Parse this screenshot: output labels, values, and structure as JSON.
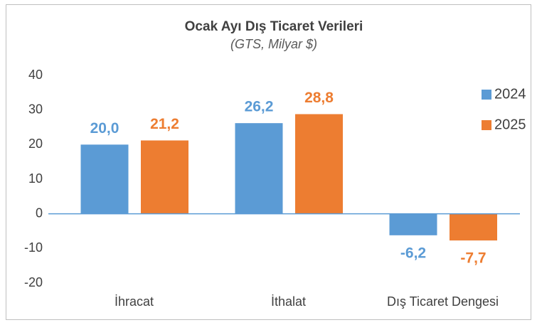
{
  "chart_data": {
    "type": "bar",
    "title": "Ocak Ayı Dış Ticaret Verileri",
    "subtitle": "(GTS, Milyar $)",
    "categories": [
      "İhracat",
      "İthalat",
      "Dış Ticaret Dengesi"
    ],
    "series": [
      {
        "name": "2024",
        "color": "#5b9bd5",
        "values": [
          20.0,
          26.2,
          -6.2
        ],
        "value_labels": [
          "20,0",
          "26,2",
          "-6,2"
        ]
      },
      {
        "name": "2025",
        "color": "#ed7d31",
        "values": [
          21.2,
          28.8,
          -7.7
        ],
        "value_labels": [
          "21,2",
          "28,8",
          "-7,7"
        ]
      }
    ],
    "ylim": [
      -20,
      40
    ],
    "yticks": [
      -20,
      -10,
      0,
      10,
      20,
      30,
      40
    ],
    "grid": false,
    "legend": "right"
  }
}
